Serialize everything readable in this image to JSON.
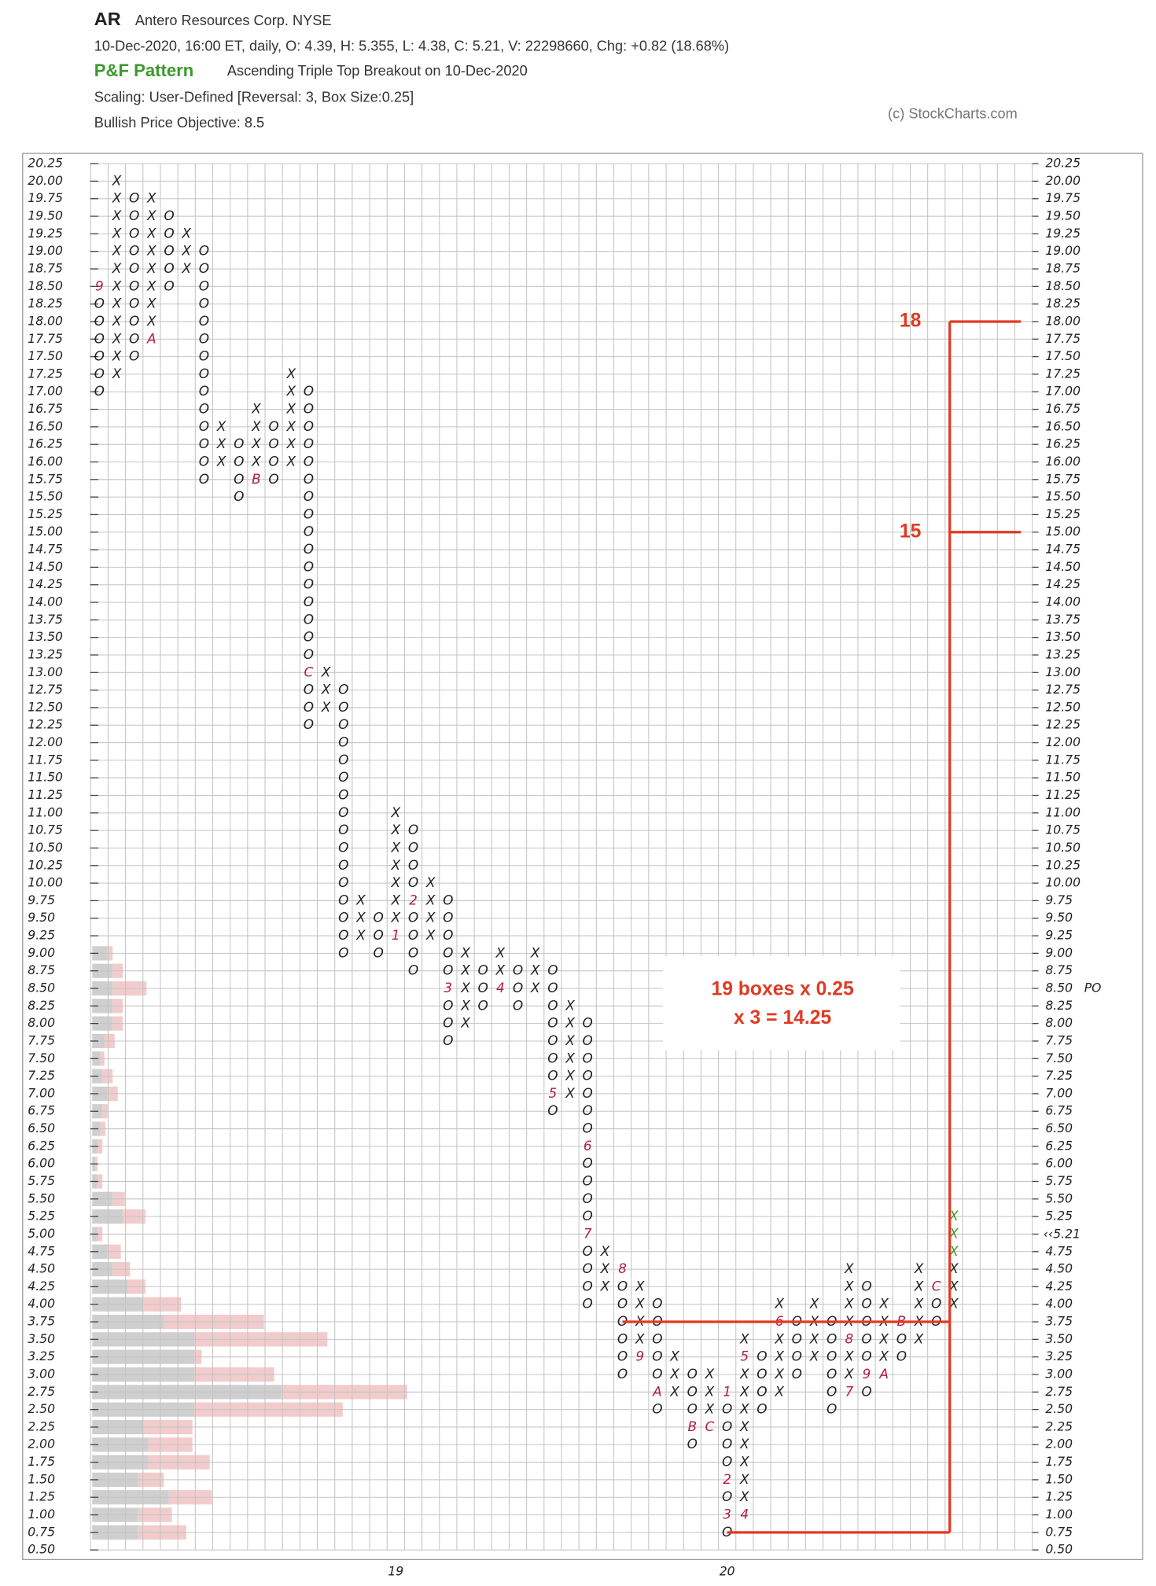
{
  "chart_data": {
    "type": "pnf",
    "symbol": "AR",
    "name": "Antero Resources Corp. NYSE",
    "quote_line": "10-Dec-2020, 16:00 ET, daily, O: 4.39, H: 5.355, L: 4.38, C: 5.21, V: 22298660, Chg: +0.82 (18.68%)",
    "pattern_label": "P&F Pattern",
    "pattern": "Ascending Triple Top Breakout on 10-Dec-2020",
    "scaling": "Scaling: User-Defined [Reversal: 3, Box Size:0.25]",
    "objective_text": "Bullish Price Objective: 8.5",
    "credit": "(c) StockCharts.com",
    "box_size": 0.25,
    "ylim": [
      0.5,
      20.25
    ],
    "yticks": [
      {
        "value": 20.25,
        "label": "20.25"
      },
      {
        "value": 20,
        "label": "20.00"
      },
      {
        "value": 19.75,
        "label": "19.75"
      },
      {
        "value": 19.5,
        "label": "19.50"
      },
      {
        "value": 19.25,
        "label": "19.25"
      },
      {
        "value": 19,
        "label": "19.00"
      },
      {
        "value": 18.75,
        "label": "18.75"
      },
      {
        "value": 18.5,
        "label": "18.50"
      },
      {
        "value": 18.25,
        "label": "18.25"
      },
      {
        "value": 18,
        "label": "18.00"
      },
      {
        "value": 17.75,
        "label": "17.75"
      },
      {
        "value": 17.5,
        "label": "17.50"
      },
      {
        "value": 17.25,
        "label": "17.25"
      },
      {
        "value": 17,
        "label": "17.00"
      },
      {
        "value": 16.75,
        "label": "16.75"
      },
      {
        "value": 16.5,
        "label": "16.50"
      },
      {
        "value": 16.25,
        "label": "16.25"
      },
      {
        "value": 16,
        "label": "16.00"
      },
      {
        "value": 15.75,
        "label": "15.75"
      },
      {
        "value": 15.5,
        "label": "15.50"
      },
      {
        "value": 15.25,
        "label": "15.25"
      },
      {
        "value": 15,
        "label": "15.00"
      },
      {
        "value": 14.75,
        "label": "14.75"
      },
      {
        "value": 14.5,
        "label": "14.50"
      },
      {
        "value": 14.25,
        "label": "14.25"
      },
      {
        "value": 14,
        "label": "14.00"
      },
      {
        "value": 13.75,
        "label": "13.75"
      },
      {
        "value": 13.5,
        "label": "13.50"
      },
      {
        "value": 13.25,
        "label": "13.25"
      },
      {
        "value": 13,
        "label": "13.00"
      },
      {
        "value": 12.75,
        "label": "12.75"
      },
      {
        "value": 12.5,
        "label": "12.50"
      },
      {
        "value": 12.25,
        "label": "12.25"
      },
      {
        "value": 12,
        "label": "12.00"
      },
      {
        "value": 11.75,
        "label": "11.75"
      },
      {
        "value": 11.5,
        "label": "11.50"
      },
      {
        "value": 11.25,
        "label": "11.25"
      },
      {
        "value": 11,
        "label": "11.00"
      },
      {
        "value": 10.75,
        "label": "10.75"
      },
      {
        "value": 10.5,
        "label": "10.50"
      },
      {
        "value": 10.25,
        "label": "10.25"
      },
      {
        "value": 10,
        "label": "10.00"
      },
      {
        "value": 9.75,
        "label": "9.75"
      },
      {
        "value": 9.5,
        "label": "9.50"
      },
      {
        "value": 9.25,
        "label": "9.25"
      },
      {
        "value": 9,
        "label": "9.00"
      },
      {
        "value": 8.75,
        "label": "8.75"
      },
      {
        "value": 8.5,
        "label": "8.50"
      },
      {
        "value": 8.25,
        "label": "8.25"
      },
      {
        "value": 8,
        "label": "8.00"
      },
      {
        "value": 7.75,
        "label": "7.75"
      },
      {
        "value": 7.5,
        "label": "7.50"
      },
      {
        "value": 7.25,
        "label": "7.25"
      },
      {
        "value": 7,
        "label": "7.00"
      },
      {
        "value": 6.75,
        "label": "6.75"
      },
      {
        "value": 6.5,
        "label": "6.50"
      },
      {
        "value": 6.25,
        "label": "6.25"
      },
      {
        "value": 6,
        "label": "6.00"
      },
      {
        "value": 5.75,
        "label": "5.75"
      },
      {
        "value": 5.5,
        "label": "5.50"
      },
      {
        "value": 5.25,
        "label": "5.25"
      },
      {
        "value": 5,
        "label": "5.00"
      },
      {
        "value": 4.75,
        "label": "4.75"
      },
      {
        "value": 4.5,
        "label": "4.50"
      },
      {
        "value": 4.25,
        "label": "4.25"
      },
      {
        "value": 4,
        "label": "4.00"
      },
      {
        "value": 3.75,
        "label": "3.75"
      },
      {
        "value": 3.5,
        "label": "3.50"
      },
      {
        "value": 3.25,
        "label": "3.25"
      },
      {
        "value": 3,
        "label": "3.00"
      },
      {
        "value": 2.75,
        "label": "2.75"
      },
      {
        "value": 2.5,
        "label": "2.50"
      },
      {
        "value": 2.25,
        "label": "2.25"
      },
      {
        "value": 2,
        "label": "2.00"
      },
      {
        "value": 1.75,
        "label": "1.75"
      },
      {
        "value": 1.5,
        "label": "1.50"
      },
      {
        "value": 1.25,
        "label": "1.25"
      },
      {
        "value": 1,
        "label": "1.00"
      },
      {
        "value": 0.75,
        "label": "0.75"
      },
      {
        "value": 0.5,
        "label": "0.50"
      }
    ],
    "price_objective": {
      "value": 8.5,
      "tag": "PO",
      "color": "#3a9a2a"
    },
    "last_price": {
      "value": 5.21,
      "label": "5.21",
      "marker": "‹‹",
      "color": "#d02030"
    },
    "columns": [
      {
        "type": "O",
        "top": 18.5,
        "bottom": 17,
        "months": [
          {
            "price": 18.5,
            "label": "9"
          }
        ]
      },
      {
        "type": "X",
        "top": 20,
        "bottom": 17.25,
        "months": []
      },
      {
        "type": "O",
        "top": 19.75,
        "bottom": 17.5,
        "months": []
      },
      {
        "type": "X",
        "top": 19.75,
        "bottom": 17.75,
        "months": [
          {
            "price": 17.75,
            "label": "A"
          }
        ]
      },
      {
        "type": "O",
        "top": 19.5,
        "bottom": 18.5,
        "months": []
      },
      {
        "type": "X",
        "top": 19.25,
        "bottom": 18.75,
        "months": []
      },
      {
        "type": "O",
        "top": 19,
        "bottom": 15.75,
        "months": []
      },
      {
        "type": "X",
        "top": 16.5,
        "bottom": 16,
        "months": []
      },
      {
        "type": "O",
        "top": 16.25,
        "bottom": 15.5,
        "months": []
      },
      {
        "type": "X",
        "top": 16.75,
        "bottom": 15.75,
        "months": [
          {
            "price": 15.75,
            "label": "B"
          }
        ]
      },
      {
        "type": "O",
        "top": 16.5,
        "bottom": 15.75,
        "months": []
      },
      {
        "type": "X",
        "top": 17.25,
        "bottom": 16,
        "months": []
      },
      {
        "type": "O",
        "top": 17,
        "bottom": 12.25,
        "months": [
          {
            "price": 13,
            "label": "C"
          }
        ]
      },
      {
        "type": "X",
        "top": 13,
        "bottom": 12.5,
        "months": []
      },
      {
        "type": "O",
        "top": 12.75,
        "bottom": 9,
        "months": []
      },
      {
        "type": "X",
        "top": 9.75,
        "bottom": 9.25,
        "months": []
      },
      {
        "type": "O",
        "top": 9.5,
        "bottom": 9,
        "months": []
      },
      {
        "type": "X",
        "top": 11,
        "bottom": 9.25,
        "months": [
          {
            "price": 9.25,
            "label": "1"
          }
        ]
      },
      {
        "type": "O",
        "top": 10.75,
        "bottom": 8.75,
        "months": [
          {
            "price": 9.75,
            "label": "2"
          }
        ]
      },
      {
        "type": "X",
        "top": 10,
        "bottom": 9.25,
        "months": []
      },
      {
        "type": "O",
        "top": 9.75,
        "bottom": 7.75,
        "months": [
          {
            "price": 8.5,
            "label": "3"
          }
        ]
      },
      {
        "type": "X",
        "top": 9,
        "bottom": 8,
        "months": []
      },
      {
        "type": "O",
        "top": 8.75,
        "bottom": 8.25,
        "months": []
      },
      {
        "type": "X",
        "top": 9,
        "bottom": 8.5,
        "months": [
          {
            "price": 8.5,
            "label": "4"
          }
        ]
      },
      {
        "type": "O",
        "top": 8.75,
        "bottom": 8.25,
        "months": []
      },
      {
        "type": "X",
        "top": 9,
        "bottom": 8.5,
        "months": []
      },
      {
        "type": "O",
        "top": 8.75,
        "bottom": 6.75,
        "months": [
          {
            "price": 7,
            "label": "5"
          }
        ]
      },
      {
        "type": "X",
        "top": 8.25,
        "bottom": 7,
        "months": []
      },
      {
        "type": "O",
        "top": 8,
        "bottom": 4,
        "months": [
          {
            "price": 6.25,
            "label": "6"
          },
          {
            "price": 5,
            "label": "7"
          }
        ]
      },
      {
        "type": "X",
        "top": 4.75,
        "bottom": 4.25,
        "months": []
      },
      {
        "type": "O",
        "top": 4.5,
        "bottom": 3,
        "months": [
          {
            "price": 4.5,
            "label": "8"
          }
        ]
      },
      {
        "type": "X",
        "top": 4.25,
        "bottom": 3.25,
        "months": [
          {
            "price": 3.25,
            "label": "9"
          }
        ]
      },
      {
        "type": "O",
        "top": 4,
        "bottom": 2.5,
        "months": [
          {
            "price": 2.75,
            "label": "A"
          }
        ]
      },
      {
        "type": "X",
        "top": 3.25,
        "bottom": 2.75,
        "months": []
      },
      {
        "type": "O",
        "top": 3,
        "bottom": 2,
        "months": [
          {
            "price": 2.25,
            "label": "B"
          }
        ]
      },
      {
        "type": "X",
        "top": 3,
        "bottom": 2.25,
        "months": [
          {
            "price": 2.25,
            "label": "C"
          }
        ]
      },
      {
        "type": "O",
        "top": 2.75,
        "bottom": 0.75,
        "months": [
          {
            "price": 2.75,
            "label": "1"
          },
          {
            "price": 1.5,
            "label": "2"
          },
          {
            "price": 1,
            "label": "3"
          }
        ]
      },
      {
        "type": "X",
        "top": 3.5,
        "bottom": 1,
        "months": [
          {
            "price": 1,
            "label": "4"
          },
          {
            "price": 3.25,
            "label": "5"
          }
        ]
      },
      {
        "type": "O",
        "top": 3.25,
        "bottom": 2.5,
        "months": []
      },
      {
        "type": "X",
        "top": 4,
        "bottom": 2.75,
        "months": [
          {
            "price": 3.75,
            "label": "6"
          }
        ]
      },
      {
        "type": "O",
        "top": 3.75,
        "bottom": 3,
        "months": []
      },
      {
        "type": "X",
        "top": 4,
        "bottom": 3.25,
        "months": []
      },
      {
        "type": "O",
        "top": 3.75,
        "bottom": 2.5,
        "months": []
      },
      {
        "type": "X",
        "top": 4.5,
        "bottom": 2.75,
        "months": [
          {
            "price": 2.75,
            "label": "7"
          },
          {
            "price": 3.5,
            "label": "8"
          }
        ]
      },
      {
        "type": "O",
        "top": 4.25,
        "bottom": 2.75,
        "months": [
          {
            "price": 3,
            "label": "9"
          }
        ]
      },
      {
        "type": "X",
        "top": 4,
        "bottom": 3,
        "months": [
          {
            "price": 3,
            "label": "A"
          }
        ]
      },
      {
        "type": "O",
        "top": 3.75,
        "bottom": 3.25,
        "months": [
          {
            "price": 3.75,
            "label": "B"
          }
        ]
      },
      {
        "type": "X",
        "top": 4.5,
        "bottom": 3.5,
        "months": []
      },
      {
        "type": "O",
        "top": 4.25,
        "bottom": 3.75,
        "months": [
          {
            "price": 4.25,
            "label": "C"
          }
        ]
      },
      {
        "type": "X",
        "top": 5.25,
        "bottom": 4,
        "months": [],
        "highlight_from": 4.75,
        "highlight_color": "#3a9a2a"
      }
    ],
    "x_labels": [
      {
        "label": "19",
        "column": 17
      },
      {
        "label": "20",
        "column": 36
      }
    ],
    "volume_by_price": {
      "prices": [
        0.75,
        1,
        1.25,
        1.5,
        1.75,
        2,
        2.25,
        2.5,
        2.75,
        3,
        3.25,
        3.5,
        3.75,
        4,
        4.25,
        4.5,
        4.75,
        5,
        5.25,
        5.5,
        5.75,
        6,
        6.25,
        6.5,
        6.75,
        7,
        7.25,
        7.5,
        7.75,
        8,
        8.25,
        8.5,
        8.75,
        9
      ],
      "down": [
        45,
        45,
        75,
        45,
        55,
        55,
        50,
        100,
        185,
        100,
        100,
        100,
        70,
        50,
        35,
        20,
        15,
        5,
        30,
        20,
        5,
        3,
        5,
        8,
        10,
        15,
        10,
        8,
        12,
        20,
        20,
        20,
        20,
        15
      ],
      "up": [
        47,
        33,
        42,
        25,
        60,
        43,
        48,
        145,
        123,
        78,
        7,
        130,
        98,
        37,
        17,
        17,
        13,
        5,
        22,
        12,
        5,
        2,
        5,
        5,
        5,
        10,
        10,
        4,
        10,
        10,
        10,
        33,
        10,
        5
      ],
      "down_color": "#cfcfcf",
      "up_color": "#f2cccc"
    },
    "levels": [
      {
        "value": 18,
        "label": "18"
      },
      {
        "value": 15,
        "label": "15"
      }
    ],
    "count_lines": [
      3.75,
      0.75
    ],
    "annotation_color": "#e03a22",
    "annotation": [
      "19 boxes x 0.25",
      "x 3 = 14.25"
    ],
    "grid": true
  }
}
